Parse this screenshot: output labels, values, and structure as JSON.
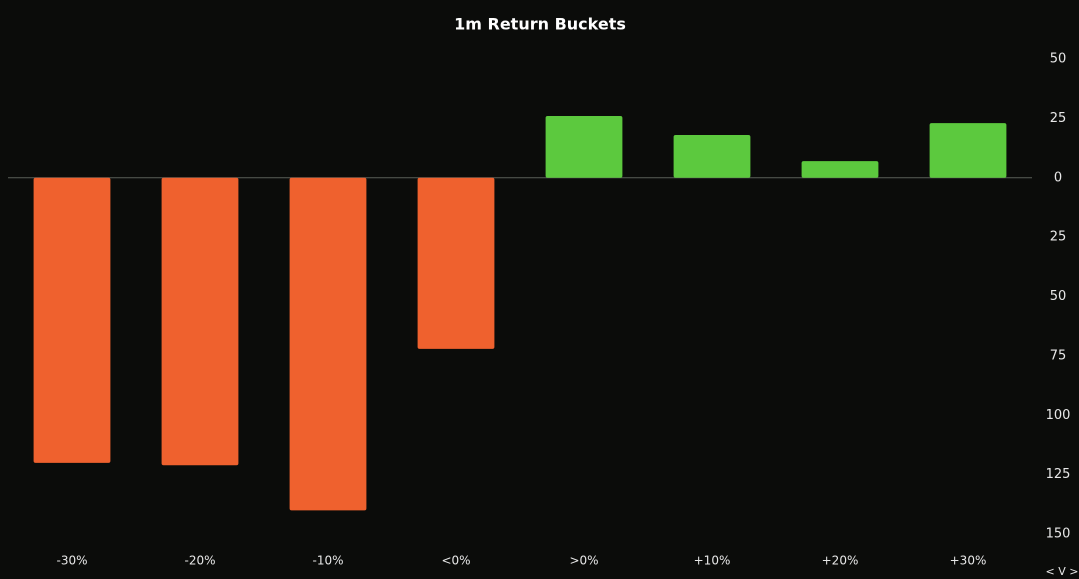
{
  "chart_data": {
    "type": "bar",
    "title": "1m Return Buckets",
    "categories": [
      "-30%",
      "-20%",
      "-10%",
      "<0%",
      ">0%",
      "+10%",
      "+20%",
      "+30%"
    ],
    "values": [
      -120,
      -121,
      -140,
      -72,
      26,
      18,
      7,
      23
    ],
    "colors": [
      "#ef612e",
      "#ef612e",
      "#ef612e",
      "#ef612e",
      "#5cc93e",
      "#5cc93e",
      "#5cc93e",
      "#5cc93e"
    ],
    "ylim": [
      -155,
      58
    ],
    "yticks": [
      50,
      25,
      0,
      {
        "value": -25,
        "label": "25"
      },
      {
        "value": -50,
        "label": "50"
      },
      {
        "value": -75,
        "label": "75"
      },
      {
        "value": -100,
        "label": "100"
      },
      {
        "value": -125,
        "label": "125"
      },
      {
        "value": -150,
        "label": "150"
      }
    ],
    "y_axis_side": "right",
    "grid": false,
    "nav_label": "< V >"
  }
}
